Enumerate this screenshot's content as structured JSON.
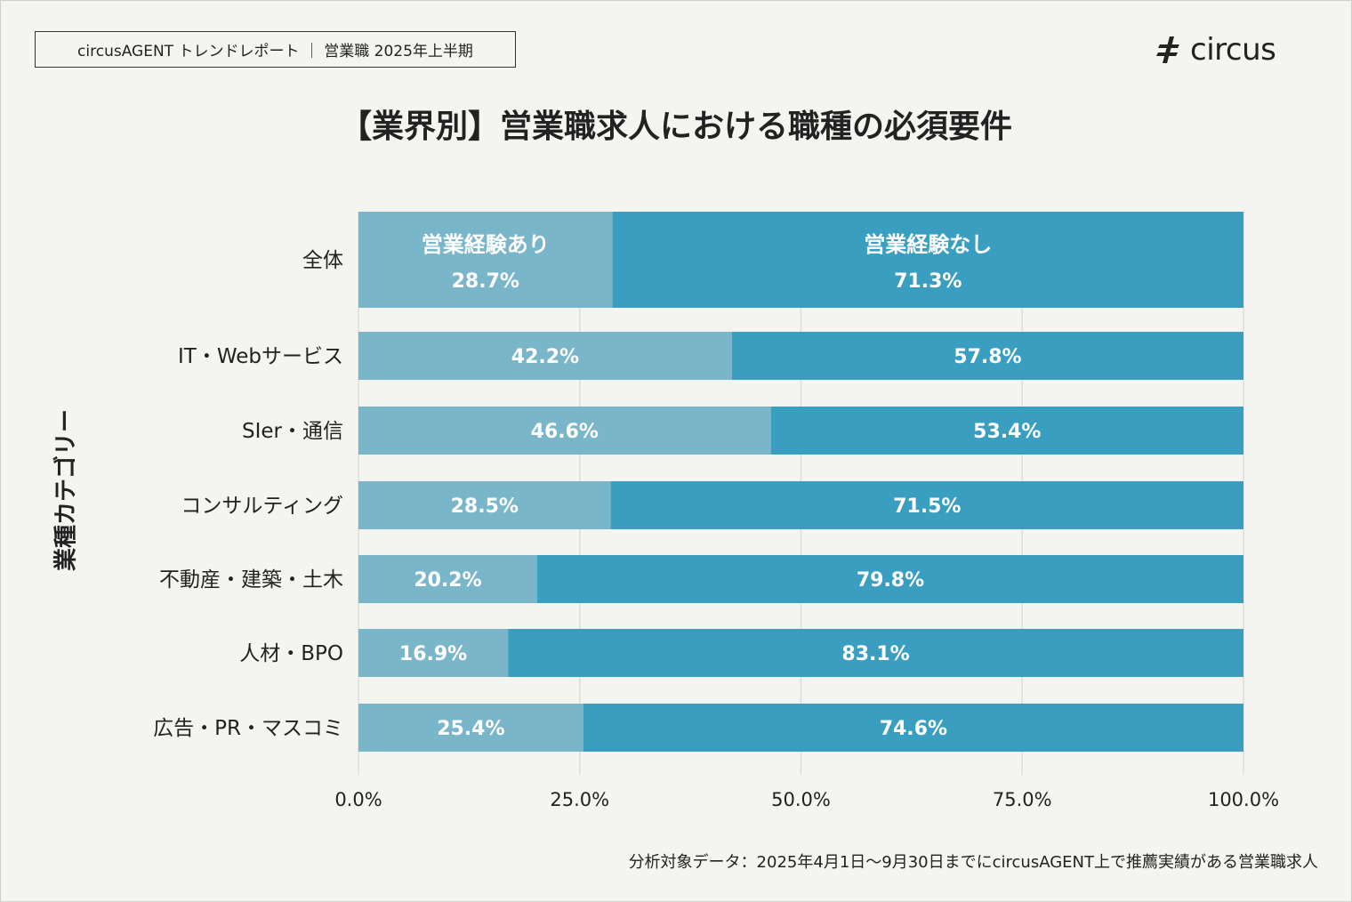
{
  "header": {
    "report_tag": "circusAGENT トレンドレポート ｜ 営業職 2025年上半期",
    "logo_text": "circus",
    "logo_icon": "circus-logo-mark"
  },
  "footnote": "分析対象データ：2025年4月1日〜9月30日までにcircusAGENT上で推薦実績がある営業職求人",
  "colors": {
    "background": "#f4f4f1",
    "series_with_experience": "#7ab6c9",
    "series_without_experience": "#3a9ec1",
    "gridline": "#dddddd"
  },
  "chart_data": {
    "type": "bar",
    "orientation": "horizontal",
    "stacked": true,
    "title": "【業界別】営業職求人における職種の必須要件",
    "ylabel": "業種カテゴリー",
    "xlabel": "",
    "xlim": [
      0,
      100
    ],
    "x_ticks": [
      0,
      25,
      50,
      75,
      100
    ],
    "x_tick_labels": [
      "0.0%",
      "25.0%",
      "50.0%",
      "75.0%",
      "100.0%"
    ],
    "grid": "vertical",
    "legend": "in-bar labels on first row",
    "categories": [
      "全体",
      "IT・Webサービス",
      "SIer・通信",
      "コンサルティング",
      "不動産・建築・土木",
      "人材・BPO",
      "広告・PR・マスコミ"
    ],
    "series": [
      {
        "name": "営業経験あり",
        "color": "#7ab6c9",
        "values": [
          28.7,
          42.2,
          46.6,
          28.5,
          20.2,
          16.9,
          25.4
        ],
        "labels": [
          "28.7%",
          "42.2%",
          "46.6%",
          "28.5%",
          "20.2%",
          "16.9%",
          "25.4%"
        ]
      },
      {
        "name": "営業経験なし",
        "color": "#3a9ec1",
        "values": [
          71.3,
          57.8,
          53.4,
          71.5,
          79.8,
          83.1,
          74.6
        ],
        "labels": [
          "71.3%",
          "57.8%",
          "53.4%",
          "71.5%",
          "79.8%",
          "83.1%",
          "74.6%"
        ]
      }
    ]
  }
}
